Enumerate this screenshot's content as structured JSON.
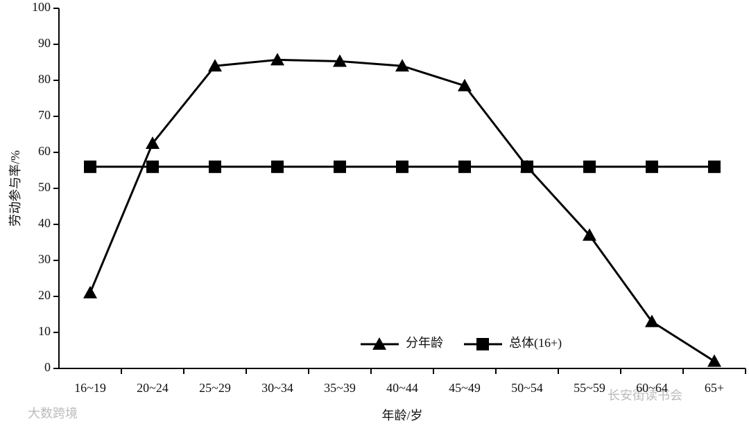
{
  "chart_data": {
    "type": "line",
    "x_label": "年龄/岁",
    "y_label": "劳动参与率/%",
    "categories": [
      "16~19",
      "20~24",
      "25~29",
      "30~34",
      "35~39",
      "40~44",
      "45~49",
      "50~54",
      "55~59",
      "60~64",
      "65+"
    ],
    "series": [
      {
        "name": "分年龄",
        "color": "#000000",
        "marker": "triangle",
        "values": [
          21,
          62.5,
          84,
          85.7,
          85.3,
          84,
          78.5,
          56,
          37,
          13,
          2
        ]
      },
      {
        "name": "总体(16+)",
        "color": "#000000",
        "marker": "square",
        "values": [
          56,
          56,
          56,
          56,
          56,
          56,
          56,
          56,
          56,
          56,
          56
        ]
      }
    ],
    "ylim": [
      0,
      100
    ],
    "yticks": [
      0,
      10,
      20,
      30,
      40,
      50,
      60,
      70,
      80,
      90,
      100
    ],
    "grid": false,
    "legend": "bottom-right",
    "watermarks": [
      "大数跨境",
      "长安街读书会"
    ]
  }
}
